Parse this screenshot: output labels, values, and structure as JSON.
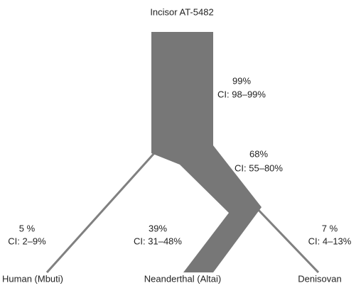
{
  "title": "Incisor AT-5482",
  "branches": [
    {
      "probability": "99%",
      "ci": "CI: 98–99%"
    },
    {
      "probability": "68%",
      "ci": "CI: 55–80%"
    },
    {
      "probability": "5 %",
      "ci": "CI: 2–9%"
    },
    {
      "probability": "39%",
      "ci": "CI: 31–48%"
    },
    {
      "probability": "7 %",
      "ci": "CI: 4–13%"
    }
  ],
  "leaves": [
    "Human (Mbuti)",
    "Neanderthal (Altai)",
    "Denisovan"
  ]
}
